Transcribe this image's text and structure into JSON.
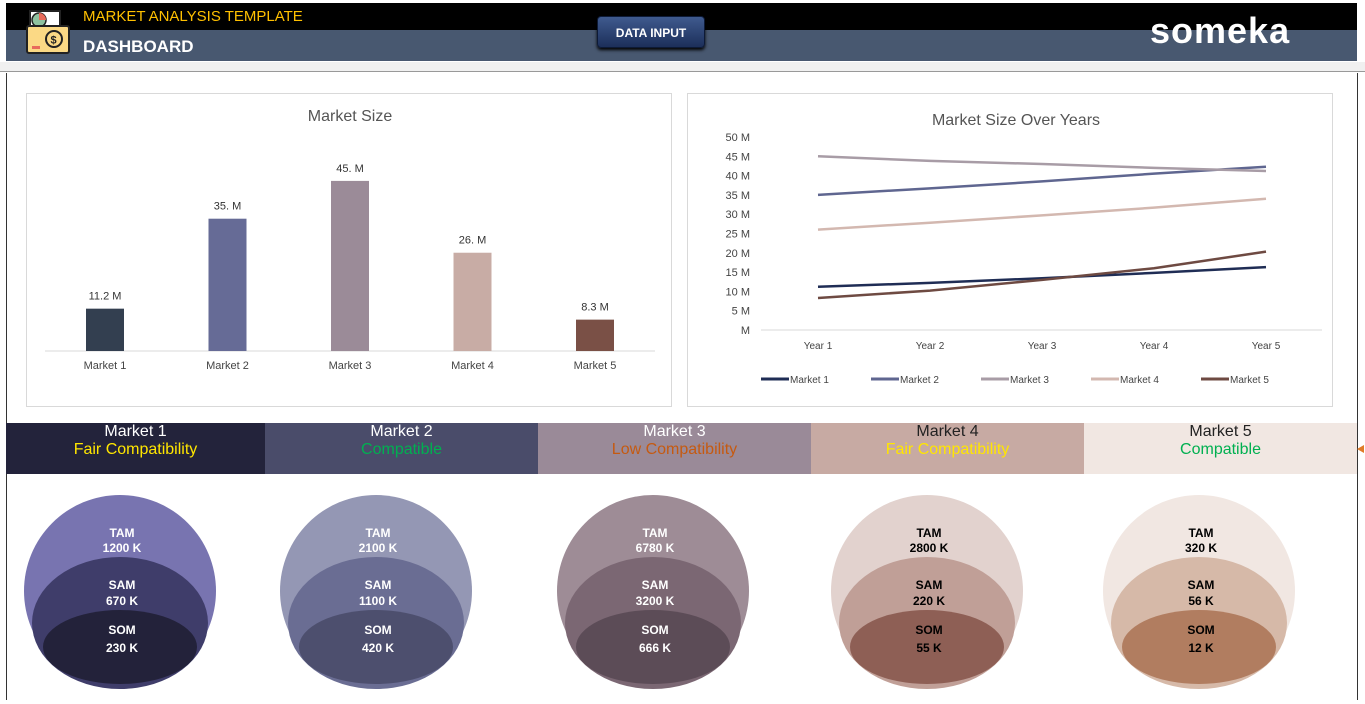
{
  "header": {
    "subtitle": "MARKET ANALYSIS TEMPLATE",
    "title": "DASHBOARD",
    "data_input_button": "DATA INPUT",
    "brand": "someka",
    "icon": "finance-folder-icon"
  },
  "chart_data": [
    {
      "type": "bar",
      "title": "Market Size",
      "categories": [
        "Market 1",
        "Market 2",
        "Market 3",
        "Market 4",
        "Market 5"
      ],
      "values": [
        11.2,
        35,
        45,
        26,
        8.3
      ],
      "data_labels": [
        "11.2 M",
        "35. M",
        "45. M",
        "26. M",
        "8.3 M"
      ],
      "colors": [
        "#333f50",
        "#666b96",
        "#9b8b98",
        "#c8aca5",
        "#7a5046"
      ],
      "grid": false
    },
    {
      "type": "line",
      "title": "Market Size Over Years",
      "categories": [
        "Year 1",
        "Year 2",
        "Year 3",
        "Year 4",
        "Year 5"
      ],
      "ylim": [
        0,
        50
      ],
      "yticks": [
        "M",
        "5 M",
        "10 M",
        "15 M",
        "20 M",
        "25 M",
        "30 M",
        "35 M",
        "40 M",
        "45 M",
        "50 M"
      ],
      "legend": "bottom",
      "grid": false,
      "series": [
        {
          "name": "Market 1",
          "color": "#1f2d55",
          "values": [
            11.2,
            12.2,
            13.4,
            14.8,
            16.3
          ]
        },
        {
          "name": "Market 2",
          "color": "#5f6690",
          "values": [
            35,
            36.7,
            38.5,
            40.5,
            42.3
          ]
        },
        {
          "name": "Market 3",
          "color": "#a89ca6",
          "values": [
            45,
            43.8,
            43,
            42,
            41.2
          ]
        },
        {
          "name": "Market 4",
          "color": "#d3b8b0",
          "values": [
            26,
            27.8,
            29.7,
            31.7,
            34
          ]
        },
        {
          "name": "Market 5",
          "color": "#6e4a42",
          "values": [
            8.3,
            10.2,
            13,
            16,
            20.3
          ]
        }
      ]
    }
  ],
  "markets": [
    {
      "name": "Market 1",
      "compat": "Fair Compatibility",
      "compat_color": "#ffe600",
      "bg": "#23233b",
      "fg": "#ffffff",
      "tam": "1200 K",
      "sam": "670 K",
      "som": "230 K",
      "c_tam": "#7874b0",
      "c_sam": "#3f3d6a",
      "c_som": "#23223a",
      "txt": "#ffffff"
    },
    {
      "name": "Market 2",
      "compat": "Compatible",
      "compat_color": "#00b050",
      "bg": "#4a4c6a",
      "fg": "#ffffff",
      "tam": "2100 K",
      "sam": "1100 K",
      "som": "420 K",
      "c_tam": "#9497b4",
      "c_sam": "#6a6d93",
      "c_som": "#4d4f6e",
      "txt": "#ffffff"
    },
    {
      "name": "Market 3",
      "compat": "Low Compatibility",
      "compat_color": "#c55a11",
      "bg": "#9a8a98",
      "fg": "#ffffff",
      "tam": "6780 K",
      "sam": "3200 K",
      "som": "666 K",
      "c_tam": "#9e8c96",
      "c_sam": "#7b6773",
      "c_som": "#5c4c57",
      "txt": "#ffffff"
    },
    {
      "name": "Market 4",
      "compat": "Fair Compatibility",
      "compat_color": "#ffe600",
      "bg": "#c7aaa3",
      "fg": "#222222",
      "tam": "2800 K",
      "sam": "220 K",
      "som": "55 K",
      "c_tam": "#e2d2ce",
      "c_sam": "#c09f97",
      "c_som": "#8e5f55",
      "txt": "#000000"
    },
    {
      "name": "Market 5",
      "compat": "Compatible",
      "compat_color": "#00b050",
      "bg": "#f1e7e2",
      "fg": "#222222",
      "tam": "320 K",
      "sam": "56 K",
      "som": "12 K",
      "c_tam": "#f1e7e2",
      "c_sam": "#d6b9a8",
      "c_som": "#b17d60",
      "txt": "#000000"
    }
  ],
  "labels": {
    "tam": "TAM",
    "sam": "SAM",
    "som": "SOM"
  }
}
